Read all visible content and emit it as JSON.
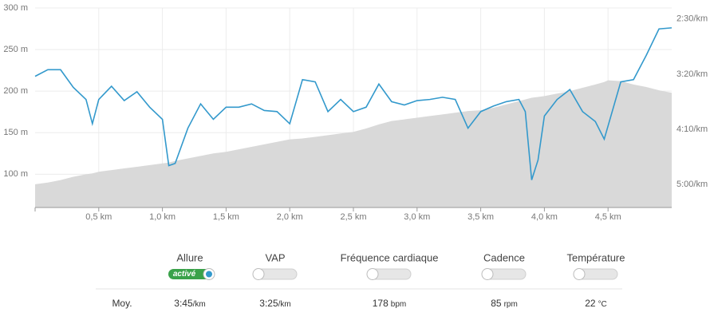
{
  "chart_data": {
    "type": "line",
    "x": [
      0,
      0.1,
      0.2,
      0.3,
      0.4,
      0.45,
      0.5,
      0.6,
      0.7,
      0.8,
      0.9,
      1.0,
      1.05,
      1.1,
      1.2,
      1.3,
      1.4,
      1.5,
      1.6,
      1.7,
      1.8,
      1.9,
      2.0,
      2.1,
      2.2,
      2.3,
      2.4,
      2.5,
      2.6,
      2.7,
      2.8,
      2.9,
      3.0,
      3.1,
      3.2,
      3.3,
      3.4,
      3.5,
      3.6,
      3.7,
      3.8,
      3.85,
      3.9,
      3.95,
      4.0,
      4.1,
      4.2,
      4.3,
      4.4,
      4.47,
      4.5,
      4.6,
      4.7,
      4.8,
      4.9,
      5.0
    ],
    "series": [
      {
        "color": "#d9d9d9",
        "fill": true,
        "axis": "y",
        "values": [
          88,
          90,
          93,
          97,
          100,
          101,
          103,
          105,
          107,
          109,
          111,
          113,
          114,
          116,
          119,
          122,
          125,
          127,
          130,
          133,
          136,
          139,
          142,
          143,
          145,
          147,
          149,
          151,
          155,
          160,
          164,
          166,
          168,
          170,
          172,
          174,
          176,
          177,
          180,
          184,
          188,
          190,
          192,
          193,
          194,
          197,
          200,
          204,
          208,
          211,
          213,
          212,
          208,
          205,
          201,
          198
        ]
      },
      {
        "color": "#3399cc",
        "axis": "y2",
        "values": [
          202,
          196,
          196,
          212,
          223,
          245,
          223,
          211,
          224,
          216,
          230,
          241,
          283,
          281,
          249,
          227,
          241,
          230,
          230,
          227,
          233,
          234,
          245,
          205,
          207,
          234,
          223,
          234,
          230,
          209,
          225,
          228,
          224,
          223,
          221,
          223,
          249,
          234,
          229,
          225,
          223,
          234,
          296,
          278,
          238,
          223,
          214,
          234,
          243,
          259,
          247,
          207,
          205,
          183,
          159,
          158
        ]
      }
    ],
    "xlim": [
      0,
      5
    ],
    "xticks": [
      {
        "value": 0.5,
        "label": "0,5 km"
      },
      {
        "value": 1.0,
        "label": "1,0 km"
      },
      {
        "value": 1.5,
        "label": "1,5 km"
      },
      {
        "value": 2.0,
        "label": "2,0 km"
      },
      {
        "value": 2.5,
        "label": "2,5 km"
      },
      {
        "value": 3.0,
        "label": "3,0 km"
      },
      {
        "value": 3.5,
        "label": "3,5 km"
      },
      {
        "value": 4.0,
        "label": "4,0 km"
      },
      {
        "value": 4.5,
        "label": "4,5 km"
      }
    ],
    "ylim": [
      60,
      300
    ],
    "yticks": [
      {
        "value": 100,
        "label": "100 m"
      },
      {
        "value": 150,
        "label": "150 m"
      },
      {
        "value": 200,
        "label": "200 m"
      },
      {
        "value": 250,
        "label": "250 m"
      },
      {
        "value": 300,
        "label": "300 m"
      }
    ],
    "y2lim": [
      321,
      140
    ],
    "y2ticks": [
      {
        "value": 150,
        "label": "2:30/km"
      },
      {
        "value": 200,
        "label": "3:20/km"
      },
      {
        "value": 250,
        "label": "4:10/km"
      },
      {
        "value": 300,
        "label": "5:00/km"
      }
    ],
    "grid": true
  },
  "summary": {
    "row_label": "Moy.",
    "metrics": [
      {
        "name": "Allure",
        "on": true,
        "toggle": "activé",
        "value": "3:45",
        "unit": "/km"
      },
      {
        "name": "VAP",
        "on": false,
        "value": "3:25",
        "unit": "/km"
      },
      {
        "name": "Fréquence cardiaque",
        "on": false,
        "value": "178",
        "unit": "bpm"
      },
      {
        "name": "Cadence",
        "on": false,
        "value": "85",
        "unit": "rpm"
      },
      {
        "name": "Température",
        "on": false,
        "value": "22",
        "unit": "°C"
      }
    ]
  }
}
